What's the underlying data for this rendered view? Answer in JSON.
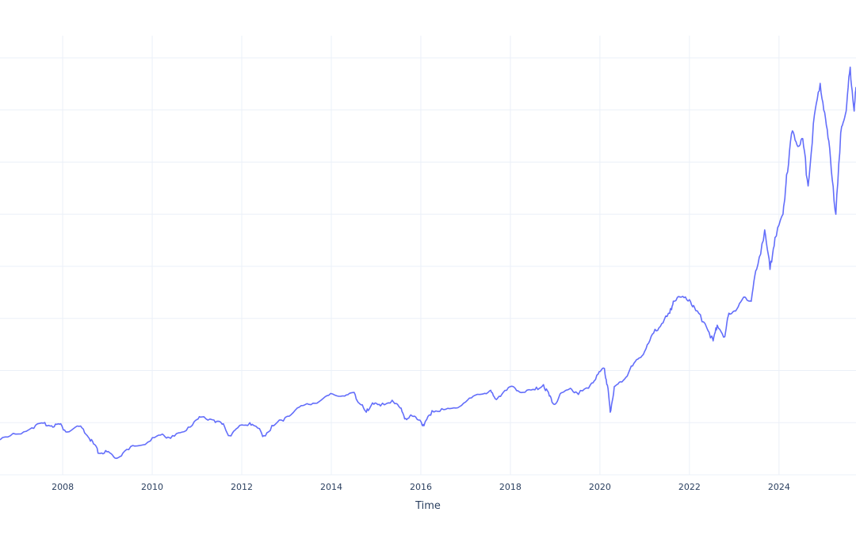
{
  "chart_data": {
    "type": "line",
    "title": "",
    "xlabel": "Time",
    "ylabel": "",
    "xlim": [
      2006.6,
      2025.72
    ],
    "x_ticks": [
      "2008",
      "2010",
      "2012",
      "2014",
      "2016",
      "2018",
      "2020",
      "2022",
      "2024"
    ],
    "y_tick_labels_visible": false,
    "grid": true,
    "line_color": "#636efa",
    "grid_color": "#ebf0f8",
    "series": [
      {
        "x": [
          2006.6,
          2006.95,
          2007.31,
          2007.57,
          2007.75,
          2007.93,
          2008.1,
          2008.37,
          2008.55,
          2008.69,
          2008.81,
          2008.99,
          2009.17,
          2009.34,
          2009.61,
          2009.96,
          2010.23,
          2010.41,
          2010.67,
          2010.94,
          2011.11,
          2011.38,
          2011.56,
          2011.73,
          2011.91,
          2012.18,
          2012.35,
          2012.49,
          2012.71,
          2012.97,
          2013.24,
          2013.5,
          2013.77,
          2014.03,
          2014.3,
          2014.51,
          2014.65,
          2014.78,
          2014.92,
          2015.1,
          2015.36,
          2015.54,
          2015.66,
          2015.8,
          2015.98,
          2016.07,
          2016.25,
          2016.51,
          2016.78,
          2017.04,
          2017.31,
          2017.54,
          2017.66,
          2017.84,
          2018.07,
          2018.28,
          2018.55,
          2018.74,
          2018.87,
          2018.99,
          2019.17,
          2019.34,
          2019.52,
          2019.79,
          2019.96,
          2020.1,
          2020.18,
          2020.23,
          2020.32,
          2020.49,
          2020.67,
          2020.85,
          2021.03,
          2021.2,
          2021.38,
          2021.56,
          2021.64,
          2021.82,
          2022.0,
          2022.14,
          2022.35,
          2022.53,
          2022.62,
          2022.79,
          2022.88,
          2023.06,
          2023.24,
          2023.38,
          2023.5,
          2023.68,
          2023.8,
          2023.91,
          2024.09,
          2024.17,
          2024.3,
          2024.42,
          2024.53,
          2024.65,
          2024.79,
          2024.92,
          2025.04,
          2025.15,
          2025.27,
          2025.4,
          2025.5,
          2025.59,
          2025.68,
          2025.72
        ],
        "y": [
          0.67,
          0.78,
          0.9,
          0.99,
          0.94,
          0.97,
          0.82,
          0.93,
          0.75,
          0.59,
          0.41,
          0.44,
          0.32,
          0.41,
          0.55,
          0.65,
          0.78,
          0.7,
          0.82,
          1.02,
          1.11,
          1.05,
          0.97,
          0.75,
          0.9,
          1.0,
          0.9,
          0.75,
          0.94,
          1.1,
          1.28,
          1.35,
          1.43,
          1.55,
          1.51,
          1.58,
          1.35,
          1.2,
          1.38,
          1.32,
          1.43,
          1.28,
          1.08,
          1.13,
          1.05,
          0.94,
          1.23,
          1.25,
          1.28,
          1.43,
          1.54,
          1.61,
          1.46,
          1.58,
          1.69,
          1.58,
          1.63,
          1.73,
          1.51,
          1.35,
          1.58,
          1.66,
          1.54,
          1.73,
          1.93,
          2.04,
          1.66,
          1.2,
          1.69,
          1.78,
          2.02,
          2.22,
          2.42,
          2.72,
          2.9,
          3.1,
          3.33,
          3.41,
          3.36,
          3.15,
          2.9,
          2.57,
          2.87,
          2.65,
          3.1,
          3.18,
          3.41,
          3.33,
          3.94,
          4.7,
          3.94,
          4.55,
          5.0,
          5.76,
          6.6,
          6.3,
          6.45,
          5.54,
          6.9,
          7.51,
          6.83,
          6.07,
          5.0,
          6.68,
          6.98,
          7.82,
          6.98,
          7.44
        ]
      }
    ]
  }
}
